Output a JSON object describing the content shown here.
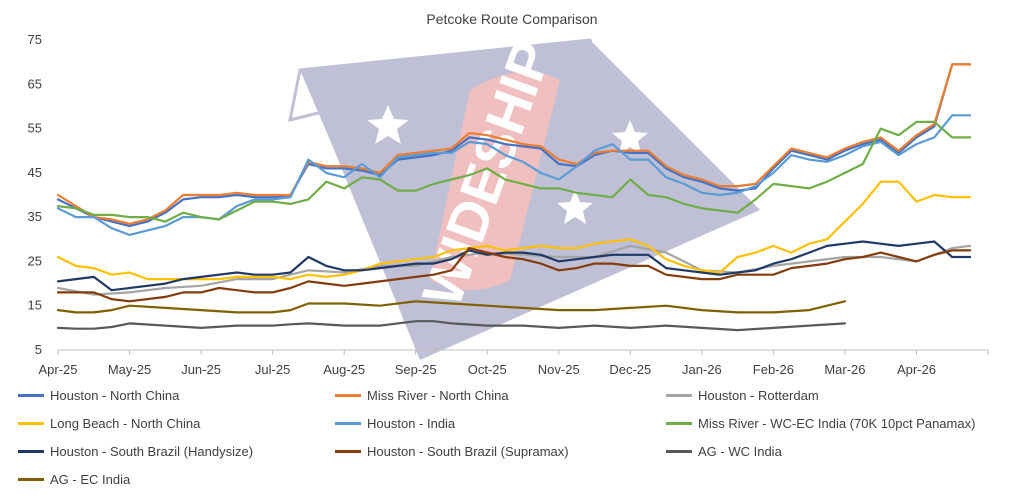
{
  "chart_data": {
    "type": "line",
    "title": "Petcoke Route Comparison",
    "xlabel": "",
    "ylabel": "",
    "ylim": [
      5,
      75
    ],
    "yticks": [
      5,
      15,
      25,
      35,
      45,
      55,
      65,
      75
    ],
    "x_tick_labels": [
      "Apr-25",
      "May-25",
      "Jun-25",
      "Jul-25",
      "Aug-25",
      "Sep-25",
      "Oct-25",
      "Nov-25",
      "Dec-25",
      "Jan-26",
      "Feb-26",
      "Mar-26",
      "Apr-26"
    ],
    "x_start": 0,
    "x_end": 12.875,
    "grid": false,
    "legend_position": "bottom",
    "watermark": "WIDESHIP",
    "series": [
      {
        "name": "Houston - North China",
        "color": "#4472C4",
        "x": [
          0,
          0.25,
          0.5,
          0.75,
          1,
          1.25,
          1.5,
          1.75,
          2,
          2.25,
          2.5,
          2.75,
          3,
          3.25,
          3.5,
          3.75,
          4,
          4.25,
          4.5,
          4.75,
          5,
          5.25,
          5.5,
          5.75,
          6,
          6.25,
          6.5,
          6.75,
          7,
          7.25,
          7.5,
          7.75,
          8,
          8.25,
          8.5,
          8.75,
          9,
          9.25,
          9.5,
          9.75,
          10,
          10.25,
          10.5,
          10.75,
          11,
          11.25,
          11.5,
          11.75,
          12,
          12.25,
          12.5,
          12.75
        ],
        "values": [
          39,
          37,
          35,
          34,
          33,
          34,
          36,
          39,
          39.5,
          39.5,
          40,
          39.5,
          39.5,
          40,
          47,
          46,
          46,
          45.5,
          44.5,
          48,
          48.5,
          49,
          50,
          53,
          52.5,
          51.5,
          51,
          50.5,
          47,
          46.5,
          49,
          50,
          49.5,
          49.5,
          46,
          44,
          43,
          41.5,
          41,
          41.5,
          46,
          50,
          49,
          48,
          50,
          51.5,
          52.5,
          49.5,
          53,
          55.5,
          69.5,
          69.5
        ]
      },
      {
        "name": "Miss River - North China",
        "color": "#ED7D31",
        "x": [
          0,
          0.25,
          0.5,
          0.75,
          1,
          1.25,
          1.5,
          1.75,
          2,
          2.25,
          2.5,
          2.75,
          3,
          3.25,
          3.5,
          3.75,
          4,
          4.25,
          4.5,
          4.75,
          5,
          5.25,
          5.5,
          5.75,
          6,
          6.25,
          6.5,
          6.75,
          7,
          7.25,
          7.5,
          7.75,
          8,
          8.25,
          8.5,
          8.75,
          9,
          9.25,
          9.5,
          9.75,
          10,
          10.25,
          10.5,
          10.75,
          11,
          11.25,
          11.5,
          11.75,
          12,
          12.25,
          12.5,
          12.75
        ],
        "values": [
          40,
          37.5,
          35,
          34.5,
          33.5,
          34.5,
          36.5,
          40,
          40,
          40,
          40.5,
          40,
          40,
          40,
          47.5,
          46.5,
          46.5,
          46,
          45,
          49,
          49.5,
          50,
          50.5,
          54,
          53.5,
          52.5,
          51.5,
          51,
          48,
          47,
          49.5,
          50,
          50,
          50,
          46.5,
          44.5,
          43.5,
          42,
          42,
          42.5,
          46.5,
          50.5,
          49.5,
          48.5,
          50.5,
          52,
          53,
          50,
          53.5,
          56,
          69.5,
          69.5
        ]
      },
      {
        "name": "Houston - Rotterdam",
        "color": "#A5A5A5",
        "x": [
          0,
          0.5,
          1,
          1.5,
          2,
          2.5,
          3,
          3.5,
          4,
          4.5,
          5,
          5.5,
          6,
          6.5,
          7,
          7.5,
          8,
          8.5,
          9,
          9.5,
          10,
          10.5,
          11,
          11.5,
          12,
          12.5,
          12.75
        ],
        "values": [
          19,
          17.5,
          18,
          19,
          19.5,
          21,
          21,
          23,
          22.5,
          24,
          24,
          26,
          27,
          26.5,
          26,
          26,
          28.5,
          27,
          23,
          22.5,
          24,
          25,
          26,
          26,
          25,
          28,
          28.5
        ]
      },
      {
        "name": "Long Beach - North China",
        "color": "#FFC000",
        "x": [
          0,
          0.25,
          0.5,
          0.75,
          1,
          1.25,
          1.5,
          1.75,
          2,
          2.25,
          2.5,
          2.75,
          3,
          3.25,
          3.5,
          3.75,
          4,
          4.25,
          4.5,
          4.75,
          5,
          5.25,
          5.5,
          5.75,
          6,
          6.25,
          6.5,
          6.75,
          7,
          7.25,
          7.5,
          7.75,
          8,
          8.25,
          8.5,
          8.75,
          9,
          9.25,
          9.5,
          9.75,
          10,
          10.25,
          10.5,
          10.75,
          11,
          11.25,
          11.5,
          11.75,
          12,
          12.25,
          12.5,
          12.75
        ],
        "values": [
          26,
          24,
          23.5,
          22,
          22.5,
          21,
          21,
          21,
          21,
          21,
          21.5,
          21.5,
          21.5,
          21,
          22,
          21.5,
          22,
          23,
          24.5,
          25,
          25.5,
          26,
          27.5,
          28,
          28.5,
          27.5,
          28,
          28.5,
          28,
          28,
          29,
          29.5,
          30,
          28.5,
          25.5,
          24,
          23,
          22.5,
          26,
          27,
          28.5,
          27,
          29,
          30,
          34,
          38,
          43,
          43,
          38.5,
          40,
          39.5,
          39.5
        ]
      },
      {
        "name": "Houston - India",
        "color": "#5B9BD5",
        "x": [
          0,
          0.25,
          0.5,
          0.75,
          1,
          1.25,
          1.5,
          1.75,
          2,
          2.25,
          2.5,
          2.75,
          3,
          3.25,
          3.5,
          3.75,
          4,
          4.25,
          4.5,
          4.75,
          5,
          5.25,
          5.5,
          5.75,
          6,
          6.25,
          6.5,
          6.75,
          7,
          7.25,
          7.5,
          7.75,
          8,
          8.25,
          8.5,
          8.75,
          9,
          9.25,
          9.5,
          9.75,
          10,
          10.25,
          10.5,
          10.75,
          11,
          11.25,
          11.5,
          11.75,
          12,
          12.25,
          12.5,
          12.75
        ],
        "values": [
          37,
          35,
          35,
          32.5,
          31,
          32,
          33,
          35,
          35,
          34.5,
          37.5,
          39,
          39,
          39.5,
          48,
          45,
          44,
          47,
          44,
          48.5,
          49,
          49.5,
          49.5,
          52,
          51.5,
          49,
          47.5,
          45,
          43.5,
          46.5,
          50,
          51.5,
          48,
          48,
          44,
          42.5,
          40.5,
          40,
          40.5,
          42,
          45,
          49,
          48,
          47.5,
          49,
          51,
          52,
          49,
          51.5,
          53,
          58,
          58
        ]
      },
      {
        "name": "Miss River - WC-EC India (70K 10pct Panamax)",
        "color": "#70AD47",
        "x": [
          0,
          0.25,
          0.5,
          0.75,
          1,
          1.25,
          1.5,
          1.75,
          2,
          2.25,
          2.5,
          2.75,
          3,
          3.25,
          3.5,
          3.75,
          4,
          4.25,
          4.5,
          4.75,
          5,
          5.25,
          5.5,
          5.75,
          6,
          6.25,
          6.5,
          6.75,
          7,
          7.25,
          7.5,
          7.75,
          8,
          8.25,
          8.5,
          8.75,
          9,
          9.25,
          9.5,
          9.75,
          10,
          10.25,
          10.5,
          10.75,
          11,
          11.25,
          11.5,
          11.75,
          12,
          12.25,
          12.5,
          12.75
        ],
        "values": [
          37.5,
          37,
          35.5,
          35.5,
          35,
          35,
          34,
          36,
          35,
          34.5,
          36.5,
          38.5,
          38.5,
          38,
          39,
          43,
          41.5,
          44,
          43.5,
          41,
          41,
          42.5,
          43.5,
          44.5,
          46,
          43.5,
          42.5,
          41.5,
          41.5,
          40.5,
          40,
          39.5,
          43.5,
          40,
          39.5,
          38,
          37,
          36.5,
          36,
          39,
          42.5,
          42,
          41.5,
          43,
          45,
          47,
          55,
          53.5,
          56.5,
          56.5,
          53,
          53
        ]
      },
      {
        "name": "Houston - South Brazil (Handysize)",
        "color": "#203864",
        "x": [
          0,
          0.25,
          0.5,
          0.75,
          1,
          1.25,
          1.5,
          1.75,
          2,
          2.25,
          2.5,
          2.75,
          3,
          3.25,
          3.5,
          3.75,
          4,
          4.25,
          4.5,
          4.75,
          5,
          5.25,
          5.5,
          5.75,
          6,
          6.25,
          6.5,
          6.75,
          7,
          7.25,
          7.5,
          7.75,
          8,
          8.25,
          8.5,
          8.75,
          9,
          9.25,
          9.5,
          9.75,
          10,
          10.25,
          10.5,
          10.75,
          11,
          11.25,
          11.5,
          11.75,
          12,
          12.25,
          12.5,
          12.75
        ],
        "values": [
          20.5,
          21,
          21.5,
          18.5,
          19,
          19.5,
          20,
          21,
          21.5,
          22,
          22.5,
          22,
          22,
          22.5,
          26,
          24,
          23,
          23,
          23.5,
          24,
          24.5,
          24.5,
          25.5,
          27.5,
          26.5,
          27,
          27,
          26.5,
          25,
          25.5,
          26,
          26.5,
          26.5,
          26.5,
          23.5,
          23,
          22.5,
          22,
          22.5,
          23,
          24.5,
          25.5,
          27,
          28.5,
          29,
          29.5,
          29,
          28.5,
          29,
          29.5,
          26,
          26
        ]
      },
      {
        "name": "Houston - South Brazil (Supramax)",
        "color": "#843C0C",
        "x": [
          0,
          0.25,
          0.5,
          0.75,
          1,
          1.25,
          1.5,
          1.75,
          2,
          2.25,
          2.5,
          2.75,
          3,
          3.25,
          3.5,
          3.75,
          4,
          4.25,
          4.5,
          4.75,
          5,
          5.25,
          5.5,
          5.75,
          6,
          6.25,
          6.5,
          6.75,
          7,
          7.25,
          7.5,
          7.75,
          8,
          8.25,
          8.5,
          8.75,
          9,
          9.25,
          9.5,
          9.75,
          10,
          10.25,
          10.5,
          10.75,
          11,
          11.25,
          11.5,
          11.75,
          12,
          12.25,
          12.5,
          12.75
        ],
        "values": [
          18,
          18,
          18,
          16.5,
          16,
          16.5,
          17,
          18,
          18,
          19,
          18.5,
          18,
          18,
          19,
          20.5,
          20,
          19.5,
          20,
          20.5,
          21,
          21.5,
          22,
          23,
          28,
          27,
          26,
          25.5,
          24.5,
          23,
          23.5,
          24.5,
          24.5,
          24,
          24,
          22,
          21.5,
          21,
          21,
          22,
          22,
          22,
          23.5,
          24,
          24.5,
          25.5,
          26,
          27,
          26,
          25,
          26.5,
          27.5,
          27.5
        ]
      },
      {
        "name": "AG - WC India",
        "color": "#595959",
        "x": [
          0,
          0.25,
          0.5,
          0.75,
          1,
          1.5,
          2,
          2.5,
          3,
          3.25,
          3.5,
          4,
          4.5,
          5,
          5.25,
          5.5,
          6,
          6.5,
          7,
          7.5,
          8,
          8.5,
          9,
          9.5,
          10,
          10.5,
          11
        ],
        "values": [
          10,
          9.8,
          9.8,
          10.2,
          11,
          10.5,
          10,
          10.5,
          10.5,
          10.8,
          11,
          10.5,
          10.5,
          11.5,
          11.5,
          11,
          10.5,
          10.5,
          10,
          10.5,
          10,
          10.5,
          10,
          9.5,
          10,
          10.5,
          11
        ]
      },
      {
        "name": "AG - EC India",
        "color": "#7F6000",
        "x": [
          0,
          0.25,
          0.5,
          0.75,
          1,
          1.5,
          2,
          2.5,
          3,
          3.25,
          3.5,
          4,
          4.5,
          5,
          5.5,
          6,
          6.5,
          7,
          7.5,
          8,
          8.5,
          9,
          9.5,
          10,
          10.5,
          11
        ],
        "values": [
          14,
          13.5,
          13.5,
          14,
          15,
          14.5,
          14,
          13.5,
          13.5,
          14,
          15.5,
          15.5,
          15,
          16,
          15.5,
          15,
          14.5,
          14,
          14,
          14.5,
          15,
          14,
          13.5,
          13.5,
          14,
          16
        ]
      }
    ]
  }
}
